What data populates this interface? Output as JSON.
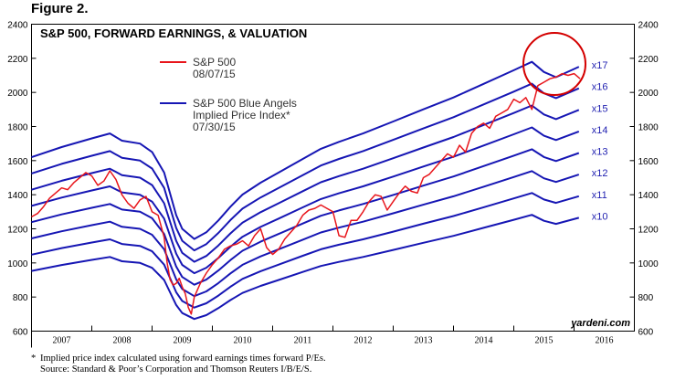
{
  "figure_label": "Figure 2.",
  "footnotes": {
    "note_mark": "*",
    "note": "Implied price index calculated using forward earnings times forward P/Es.",
    "source": "Source: Standard & Poor’s Corporation and Thomson Reuters I/B/E/S."
  },
  "colors": {
    "sp500": "#e8151b",
    "blue_angels": "#1616b4",
    "highlight_circle": "#d40000",
    "frame": "#000000"
  },
  "chart_data": {
    "type": "line",
    "title": "S&P 500, FORWARD EARNINGS, & VALUATION",
    "credit": "yardeni.com",
    "ylim": [
      600,
      2400
    ],
    "y_ticks": [
      600,
      800,
      1000,
      1200,
      1400,
      1600,
      1800,
      2000,
      2200,
      2400
    ],
    "y_tick_labels": [
      "600",
      "800",
      "1000",
      "1200",
      "1400",
      "1600",
      "1800",
      "2000",
      "2200",
      "2400"
    ],
    "xlim": [
      2006.5,
      2016.5
    ],
    "x_tick_labels": [
      "2007",
      "2008",
      "2009",
      "2010",
      "2011",
      "2012",
      "2013",
      "2014",
      "2015",
      "2016"
    ],
    "legend": [
      {
        "name": "S&P 500",
        "sub": [
          "08/07/15"
        ],
        "color_key": "sp500"
      },
      {
        "name": "S&P 500 Blue Angels",
        "sub": [
          "Implied Price Index*",
          "07/30/15"
        ],
        "color_key": "blue_angels"
      }
    ],
    "forward_earnings": {
      "x": [
        2006.5,
        2007.0,
        2007.5,
        2007.8,
        2008.0,
        2008.3,
        2008.5,
        2008.7,
        2008.9,
        2009.0,
        2009.2,
        2009.4,
        2009.6,
        2009.8,
        2010.0,
        2010.3,
        2010.6,
        2011.0,
        2011.3,
        2011.6,
        2012.0,
        2012.5,
        2013.0,
        2013.5,
        2014.0,
        2014.5,
        2014.8,
        2015.0,
        2015.2,
        2015.58
      ],
      "y": [
        95.3,
        98.8,
        101.8,
        103.5,
        101.0,
        100.0,
        97.1,
        90.0,
        75.3,
        70.6,
        67.1,
        69.4,
        73.5,
        78.2,
        82.4,
        86.5,
        90.0,
        94.7,
        98.2,
        100.6,
        103.5,
        107.6,
        111.8,
        115.9,
        120.6,
        125.3,
        128.2,
        124.7,
        122.9,
        126.5
      ]
    },
    "multiples": [
      10,
      11,
      12,
      13,
      14,
      15,
      16,
      17
    ],
    "multiple_labels": [
      "x10",
      "x11",
      "x12",
      "x13",
      "x14",
      "x15",
      "x16",
      "x17"
    ],
    "series": [
      {
        "name": "S&P 500",
        "x": [
          2006.5,
          2006.6,
          2006.7,
          2006.8,
          2006.9,
          2007.0,
          2007.1,
          2007.2,
          2007.3,
          2007.4,
          2007.5,
          2007.6,
          2007.7,
          2007.8,
          2007.9,
          2008.0,
          2008.1,
          2008.2,
          2008.3,
          2008.4,
          2008.5,
          2008.6,
          2008.7,
          2008.75,
          2008.8,
          2008.85,
          2008.9,
          2008.95,
          2009.0,
          2009.05,
          2009.1,
          2009.15,
          2009.2,
          2009.3,
          2009.4,
          2009.5,
          2009.6,
          2009.7,
          2009.8,
          2009.9,
          2010.0,
          2010.1,
          2010.2,
          2010.3,
          2010.4,
          2010.5,
          2010.6,
          2010.7,
          2010.8,
          2010.9,
          2011.0,
          2011.1,
          2011.2,
          2011.3,
          2011.4,
          2011.5,
          2011.6,
          2011.7,
          2011.8,
          2011.9,
          2012.0,
          2012.1,
          2012.2,
          2012.3,
          2012.4,
          2012.5,
          2012.6,
          2012.7,
          2012.8,
          2012.9,
          2013.0,
          2013.1,
          2013.2,
          2013.3,
          2013.4,
          2013.5,
          2013.6,
          2013.7,
          2013.8,
          2013.9,
          2014.0,
          2014.1,
          2014.2,
          2014.3,
          2014.4,
          2014.5,
          2014.6,
          2014.7,
          2014.8,
          2014.9,
          2015.0,
          2015.1,
          2015.2,
          2015.3,
          2015.4,
          2015.5,
          2015.6
        ],
        "y": [
          1270,
          1290,
          1330,
          1380,
          1410,
          1440,
          1430,
          1470,
          1500,
          1530,
          1510,
          1455,
          1480,
          1540,
          1490,
          1400,
          1350,
          1320,
          1370,
          1390,
          1300,
          1280,
          1150,
          1000,
          900,
          870,
          880,
          910,
          860,
          820,
          740,
          700,
          800,
          880,
          940,
          990,
          1030,
          1080,
          1100,
          1110,
          1130,
          1100,
          1160,
          1200,
          1090,
          1050,
          1080,
          1140,
          1180,
          1220,
          1280,
          1310,
          1320,
          1340,
          1320,
          1300,
          1160,
          1150,
          1250,
          1250,
          1300,
          1360,
          1400,
          1390,
          1310,
          1360,
          1410,
          1450,
          1420,
          1410,
          1500,
          1520,
          1560,
          1600,
          1640,
          1620,
          1690,
          1650,
          1760,
          1800,
          1820,
          1790,
          1860,
          1880,
          1900,
          1960,
          1940,
          1970,
          1900,
          2040,
          2060,
          2080,
          2090,
          2110,
          2100,
          2110,
          2080
        ]
      }
    ]
  }
}
